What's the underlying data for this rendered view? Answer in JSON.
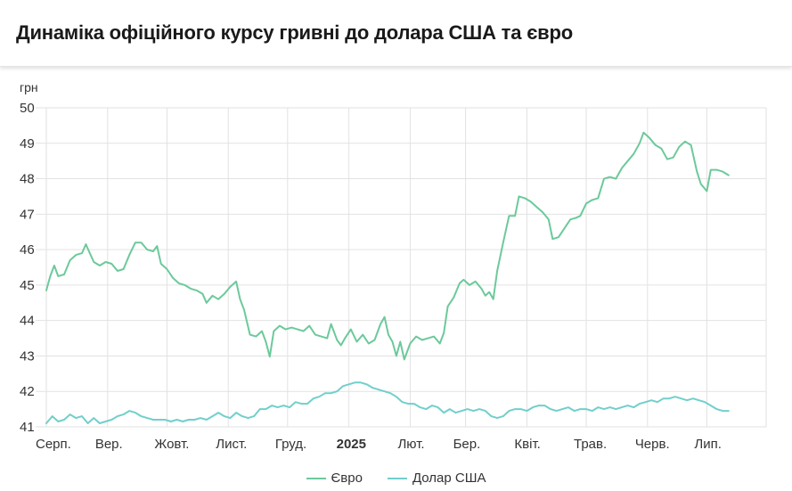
{
  "header": {
    "title": "Динаміка офіційного курсу гривні до долара США та євро"
  },
  "chart_data": {
    "type": "line",
    "title": "Динаміка офіційного курсу гривні до долара США та євро",
    "ylabel": "грн",
    "xlabel": "",
    "ylim": [
      41,
      50
    ],
    "y_ticks": [
      41,
      42,
      43,
      44,
      45,
      46,
      47,
      48,
      49,
      50
    ],
    "x_domain": [
      "2024-08-01",
      "2025-07-31"
    ],
    "x_ticks": [
      {
        "date": "2024-08-01",
        "label": "Серп."
      },
      {
        "date": "2024-09-01",
        "label": "Вер."
      },
      {
        "date": "2024-10-01",
        "label": "Жовт."
      },
      {
        "date": "2024-11-01",
        "label": "Лист."
      },
      {
        "date": "2024-12-01",
        "label": "Груд."
      },
      {
        "date": "2025-01-01",
        "label": "2025",
        "bold": true
      },
      {
        "date": "2025-02-01",
        "label": "Лют."
      },
      {
        "date": "2025-03-01",
        "label": "Бер."
      },
      {
        "date": "2025-04-01",
        "label": "Квіт."
      },
      {
        "date": "2025-05-01",
        "label": "Трав."
      },
      {
        "date": "2025-06-01",
        "label": "Черв."
      },
      {
        "date": "2025-07-01",
        "label": "Лип."
      }
    ],
    "grid": true,
    "legend_position": "bottom-center",
    "series": [
      {
        "name": "Євро",
        "color": "#6cc99b",
        "points": [
          [
            "2024-08-01",
            44.85
          ],
          [
            "2024-08-03",
            45.25
          ],
          [
            "2024-08-05",
            45.55
          ],
          [
            "2024-08-07",
            45.25
          ],
          [
            "2024-08-10",
            45.3
          ],
          [
            "2024-08-13",
            45.7
          ],
          [
            "2024-08-16",
            45.85
          ],
          [
            "2024-08-19",
            45.9
          ],
          [
            "2024-08-21",
            46.15
          ],
          [
            "2024-08-23",
            45.9
          ],
          [
            "2024-08-25",
            45.65
          ],
          [
            "2024-08-28",
            45.55
          ],
          [
            "2024-08-31",
            45.65
          ],
          [
            "2024-09-03",
            45.6
          ],
          [
            "2024-09-06",
            45.4
          ],
          [
            "2024-09-09",
            45.45
          ],
          [
            "2024-09-12",
            45.85
          ],
          [
            "2024-09-15",
            46.2
          ],
          [
            "2024-09-18",
            46.2
          ],
          [
            "2024-09-21",
            46.0
          ],
          [
            "2024-09-24",
            45.95
          ],
          [
            "2024-09-26",
            46.1
          ],
          [
            "2024-09-28",
            45.6
          ],
          [
            "2024-10-01",
            45.45
          ],
          [
            "2024-10-04",
            45.2
          ],
          [
            "2024-10-07",
            45.05
          ],
          [
            "2024-10-10",
            45.0
          ],
          [
            "2024-10-13",
            44.9
          ],
          [
            "2024-10-16",
            44.85
          ],
          [
            "2024-10-19",
            44.75
          ],
          [
            "2024-10-21",
            44.5
          ],
          [
            "2024-10-24",
            44.7
          ],
          [
            "2024-10-27",
            44.6
          ],
          [
            "2024-10-30",
            44.75
          ],
          [
            "2024-11-02",
            44.95
          ],
          [
            "2024-11-05",
            45.1
          ],
          [
            "2024-11-07",
            44.6
          ],
          [
            "2024-11-09",
            44.3
          ],
          [
            "2024-11-12",
            43.6
          ],
          [
            "2024-11-15",
            43.55
          ],
          [
            "2024-11-18",
            43.7
          ],
          [
            "2024-11-20",
            43.4
          ],
          [
            "2024-11-22",
            42.98
          ],
          [
            "2024-11-24",
            43.7
          ],
          [
            "2024-11-27",
            43.85
          ],
          [
            "2024-11-30",
            43.75
          ],
          [
            "2024-12-03",
            43.8
          ],
          [
            "2024-12-06",
            43.75
          ],
          [
            "2024-12-09",
            43.7
          ],
          [
            "2024-12-12",
            43.85
          ],
          [
            "2024-12-15",
            43.6
          ],
          [
            "2024-12-18",
            43.55
          ],
          [
            "2024-12-21",
            43.5
          ],
          [
            "2024-12-23",
            43.9
          ],
          [
            "2024-12-26",
            43.45
          ],
          [
            "2024-12-28",
            43.3
          ],
          [
            "2024-12-30",
            43.5
          ],
          [
            "2025-01-02",
            43.75
          ],
          [
            "2025-01-05",
            43.4
          ],
          [
            "2025-01-08",
            43.6
          ],
          [
            "2025-01-11",
            43.35
          ],
          [
            "2025-01-14",
            43.45
          ],
          [
            "2025-01-17",
            43.9
          ],
          [
            "2025-01-19",
            44.1
          ],
          [
            "2025-01-21",
            43.6
          ],
          [
            "2025-01-23",
            43.4
          ],
          [
            "2025-01-25",
            43.0
          ],
          [
            "2025-01-27",
            43.4
          ],
          [
            "2025-01-29",
            42.9
          ],
          [
            "2025-02-01",
            43.35
          ],
          [
            "2025-02-04",
            43.55
          ],
          [
            "2025-02-07",
            43.45
          ],
          [
            "2025-02-10",
            43.5
          ],
          [
            "2025-02-13",
            43.55
          ],
          [
            "2025-02-16",
            43.35
          ],
          [
            "2025-02-18",
            43.65
          ],
          [
            "2025-02-20",
            44.4
          ],
          [
            "2025-02-23",
            44.65
          ],
          [
            "2025-02-26",
            45.05
          ],
          [
            "2025-02-28",
            45.15
          ],
          [
            "2025-03-03",
            45.0
          ],
          [
            "2025-03-06",
            45.1
          ],
          [
            "2025-03-09",
            44.9
          ],
          [
            "2025-03-11",
            44.7
          ],
          [
            "2025-03-13",
            44.8
          ],
          [
            "2025-03-15",
            44.6
          ],
          [
            "2025-03-17",
            45.4
          ],
          [
            "2025-03-20",
            46.2
          ],
          [
            "2025-03-23",
            46.95
          ],
          [
            "2025-03-26",
            46.95
          ],
          [
            "2025-03-28",
            47.5
          ],
          [
            "2025-03-31",
            47.45
          ],
          [
            "2025-04-03",
            47.35
          ],
          [
            "2025-04-06",
            47.2
          ],
          [
            "2025-04-09",
            47.05
          ],
          [
            "2025-04-12",
            46.85
          ],
          [
            "2025-04-14",
            46.3
          ],
          [
            "2025-04-17",
            46.35
          ],
          [
            "2025-04-20",
            46.6
          ],
          [
            "2025-04-23",
            46.85
          ],
          [
            "2025-04-26",
            46.9
          ],
          [
            "2025-04-28",
            46.95
          ],
          [
            "2025-05-01",
            47.3
          ],
          [
            "2025-05-04",
            47.4
          ],
          [
            "2025-05-07",
            47.45
          ],
          [
            "2025-05-10",
            48.0
          ],
          [
            "2025-05-13",
            48.05
          ],
          [
            "2025-05-16",
            48.0
          ],
          [
            "2025-05-19",
            48.3
          ],
          [
            "2025-05-22",
            48.5
          ],
          [
            "2025-05-25",
            48.7
          ],
          [
            "2025-05-28",
            49.0
          ],
          [
            "2025-05-30",
            49.3
          ],
          [
            "2025-06-02",
            49.15
          ],
          [
            "2025-06-05",
            48.95
          ],
          [
            "2025-06-08",
            48.85
          ],
          [
            "2025-06-11",
            48.55
          ],
          [
            "2025-06-14",
            48.6
          ],
          [
            "2025-06-17",
            48.9
          ],
          [
            "2025-06-20",
            49.05
          ],
          [
            "2025-06-23",
            48.95
          ],
          [
            "2025-06-26",
            48.2
          ],
          [
            "2025-06-28",
            47.85
          ],
          [
            "2025-07-01",
            47.65
          ],
          [
            "2025-07-03",
            48.25
          ],
          [
            "2025-07-06",
            48.25
          ],
          [
            "2025-07-09",
            48.2
          ],
          [
            "2025-07-12",
            48.1
          ]
        ]
      },
      {
        "name": "Долар США",
        "color": "#71cfcb",
        "points": [
          [
            "2024-08-01",
            41.1
          ],
          [
            "2024-08-04",
            41.3
          ],
          [
            "2024-08-07",
            41.15
          ],
          [
            "2024-08-10",
            41.2
          ],
          [
            "2024-08-13",
            41.35
          ],
          [
            "2024-08-16",
            41.25
          ],
          [
            "2024-08-19",
            41.3
          ],
          [
            "2024-08-22",
            41.1
          ],
          [
            "2024-08-25",
            41.25
          ],
          [
            "2024-08-28",
            41.1
          ],
          [
            "2024-08-31",
            41.15
          ],
          [
            "2024-09-03",
            41.2
          ],
          [
            "2024-09-06",
            41.3
          ],
          [
            "2024-09-09",
            41.35
          ],
          [
            "2024-09-12",
            41.45
          ],
          [
            "2024-09-15",
            41.4
          ],
          [
            "2024-09-18",
            41.3
          ],
          [
            "2024-09-21",
            41.25
          ],
          [
            "2024-09-24",
            41.2
          ],
          [
            "2024-09-27",
            41.2
          ],
          [
            "2024-09-30",
            41.2
          ],
          [
            "2024-10-03",
            41.15
          ],
          [
            "2024-10-06",
            41.2
          ],
          [
            "2024-10-09",
            41.15
          ],
          [
            "2024-10-12",
            41.2
          ],
          [
            "2024-10-15",
            41.2
          ],
          [
            "2024-10-18",
            41.25
          ],
          [
            "2024-10-21",
            41.2
          ],
          [
            "2024-10-24",
            41.3
          ],
          [
            "2024-10-27",
            41.4
          ],
          [
            "2024-10-30",
            41.3
          ],
          [
            "2024-11-02",
            41.25
          ],
          [
            "2024-11-05",
            41.4
          ],
          [
            "2024-11-08",
            41.3
          ],
          [
            "2024-11-11",
            41.25
          ],
          [
            "2024-11-14",
            41.3
          ],
          [
            "2024-11-17",
            41.5
          ],
          [
            "2024-11-20",
            41.5
          ],
          [
            "2024-11-23",
            41.6
          ],
          [
            "2024-11-26",
            41.55
          ],
          [
            "2024-11-29",
            41.6
          ],
          [
            "2024-12-02",
            41.55
          ],
          [
            "2024-12-05",
            41.7
          ],
          [
            "2024-12-08",
            41.65
          ],
          [
            "2024-12-11",
            41.65
          ],
          [
            "2024-12-14",
            41.8
          ],
          [
            "2024-12-17",
            41.85
          ],
          [
            "2024-12-20",
            41.95
          ],
          [
            "2024-12-23",
            41.95
          ],
          [
            "2024-12-26",
            42.0
          ],
          [
            "2024-12-29",
            42.15
          ],
          [
            "2025-01-01",
            42.2
          ],
          [
            "2025-01-04",
            42.25
          ],
          [
            "2025-01-07",
            42.25
          ],
          [
            "2025-01-10",
            42.2
          ],
          [
            "2025-01-13",
            42.1
          ],
          [
            "2025-01-16",
            42.05
          ],
          [
            "2025-01-19",
            42.0
          ],
          [
            "2025-01-22",
            41.95
          ],
          [
            "2025-01-25",
            41.85
          ],
          [
            "2025-01-28",
            41.7
          ],
          [
            "2025-01-31",
            41.65
          ],
          [
            "2025-02-03",
            41.65
          ],
          [
            "2025-02-06",
            41.55
          ],
          [
            "2025-02-09",
            41.5
          ],
          [
            "2025-02-12",
            41.6
          ],
          [
            "2025-02-15",
            41.55
          ],
          [
            "2025-02-18",
            41.4
          ],
          [
            "2025-02-21",
            41.5
          ],
          [
            "2025-02-24",
            41.4
          ],
          [
            "2025-02-27",
            41.45
          ],
          [
            "2025-03-02",
            41.5
          ],
          [
            "2025-03-05",
            41.45
          ],
          [
            "2025-03-08",
            41.5
          ],
          [
            "2025-03-11",
            41.45
          ],
          [
            "2025-03-14",
            41.3
          ],
          [
            "2025-03-17",
            41.25
          ],
          [
            "2025-03-20",
            41.3
          ],
          [
            "2025-03-23",
            41.45
          ],
          [
            "2025-03-26",
            41.5
          ],
          [
            "2025-03-29",
            41.5
          ],
          [
            "2025-04-01",
            41.45
          ],
          [
            "2025-04-04",
            41.55
          ],
          [
            "2025-04-07",
            41.6
          ],
          [
            "2025-04-10",
            41.6
          ],
          [
            "2025-04-13",
            41.5
          ],
          [
            "2025-04-16",
            41.45
          ],
          [
            "2025-04-19",
            41.5
          ],
          [
            "2025-04-22",
            41.55
          ],
          [
            "2025-04-25",
            41.45
          ],
          [
            "2025-04-28",
            41.5
          ],
          [
            "2025-05-01",
            41.5
          ],
          [
            "2025-05-04",
            41.45
          ],
          [
            "2025-05-07",
            41.55
          ],
          [
            "2025-05-10",
            41.5
          ],
          [
            "2025-05-13",
            41.55
          ],
          [
            "2025-05-16",
            41.5
          ],
          [
            "2025-05-19",
            41.55
          ],
          [
            "2025-05-22",
            41.6
          ],
          [
            "2025-05-25",
            41.55
          ],
          [
            "2025-05-28",
            41.65
          ],
          [
            "2025-05-31",
            41.7
          ],
          [
            "2025-06-03",
            41.75
          ],
          [
            "2025-06-06",
            41.7
          ],
          [
            "2025-06-09",
            41.8
          ],
          [
            "2025-06-12",
            41.8
          ],
          [
            "2025-06-15",
            41.85
          ],
          [
            "2025-06-18",
            41.8
          ],
          [
            "2025-06-21",
            41.75
          ],
          [
            "2025-06-24",
            41.8
          ],
          [
            "2025-06-27",
            41.75
          ],
          [
            "2025-06-30",
            41.7
          ],
          [
            "2025-07-03",
            41.6
          ],
          [
            "2025-07-06",
            41.5
          ],
          [
            "2025-07-09",
            41.45
          ],
          [
            "2025-07-12",
            41.45
          ]
        ]
      }
    ]
  }
}
